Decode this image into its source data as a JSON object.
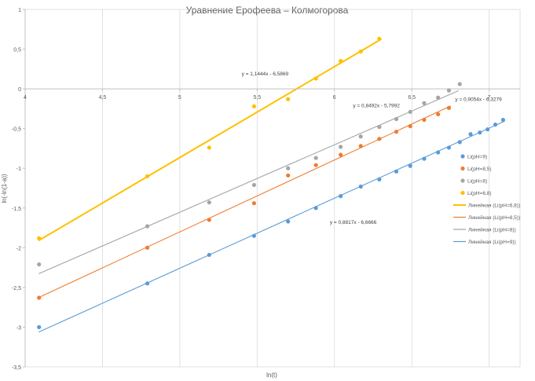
{
  "chart_data": {
    "type": "scatter",
    "title": "Уравнение Ерофеева – Колмогорова",
    "xlabel": "ln(t)",
    "ylabel": "ln(-ln(1-a))",
    "xlim": [
      4,
      7.2
    ],
    "ylim": [
      -3.5,
      1
    ],
    "x_ticks": [
      4,
      4.5,
      5,
      5.5,
      6,
      6.5,
      7
    ],
    "x_tick_labels": [
      "4",
      "4,5",
      "5",
      "5,5",
      "6",
      "6,5",
      "7"
    ],
    "y_ticks": [
      -3.5,
      -3,
      -2.5,
      -2,
      -1.5,
      -1,
      -0.5,
      0,
      0.5,
      1
    ],
    "y_tick_labels": [
      "-3,5",
      "-3",
      "-2,5",
      "-2",
      "-1,5",
      "-1",
      "-0,5",
      "0",
      "0,5",
      "1"
    ],
    "x_axis_crosses_at_y": 0,
    "grid": "vertical",
    "legend_position": "right",
    "series": [
      {
        "name": "Li(pH=9)",
        "color": "#5b9bd5",
        "points": [
          [
            4.09,
            -3.0
          ],
          [
            4.79,
            -2.45
          ],
          [
            5.19,
            -2.09
          ],
          [
            5.48,
            -1.85
          ],
          [
            5.7,
            -1.67
          ],
          [
            5.88,
            -1.5
          ],
          [
            6.04,
            -1.35
          ],
          [
            6.17,
            -1.23
          ],
          [
            6.29,
            -1.14
          ],
          [
            6.4,
            -1.04
          ],
          [
            6.49,
            -0.97
          ],
          [
            6.58,
            -0.88
          ],
          [
            6.67,
            -0.8
          ],
          [
            6.74,
            -0.74
          ],
          [
            6.81,
            -0.67
          ],
          [
            6.88,
            -0.57
          ],
          [
            6.94,
            -0.55
          ],
          [
            6.99,
            -0.51
          ],
          [
            7.04,
            -0.45
          ],
          [
            7.09,
            -0.39
          ]
        ]
      },
      {
        "name": "Li(pH=8,5)",
        "color": "#ed7d31",
        "points": [
          [
            4.09,
            -2.63
          ],
          [
            4.79,
            -2.0
          ],
          [
            5.19,
            -1.65
          ],
          [
            5.48,
            -1.44
          ],
          [
            5.7,
            -1.09
          ],
          [
            5.88,
            -0.96
          ],
          [
            6.04,
            -0.83
          ],
          [
            6.17,
            -0.72
          ],
          [
            6.29,
            -0.63
          ],
          [
            6.4,
            -0.54
          ],
          [
            6.49,
            -0.47
          ],
          [
            6.58,
            -0.39
          ],
          [
            6.67,
            -0.32
          ],
          [
            6.74,
            -0.24
          ]
        ]
      },
      {
        "name": "Li(pH=8)",
        "color": "#a5a5a5",
        "points": [
          [
            4.09,
            -2.21
          ],
          [
            4.79,
            -1.73
          ],
          [
            5.19,
            -1.43
          ],
          [
            5.48,
            -1.21
          ],
          [
            5.7,
            -1.0
          ],
          [
            5.88,
            -0.87
          ],
          [
            6.04,
            -0.73
          ],
          [
            6.17,
            -0.6
          ],
          [
            6.29,
            -0.48
          ],
          [
            6.4,
            -0.38
          ],
          [
            6.49,
            -0.29
          ],
          [
            6.58,
            -0.18
          ],
          [
            6.67,
            -0.11
          ],
          [
            6.74,
            -0.02
          ],
          [
            6.81,
            0.06
          ]
        ]
      },
      {
        "name": "Li(pH=6,8)",
        "color": "#ffc000",
        "points": [
          [
            4.09,
            -1.88
          ],
          [
            4.79,
            -1.1
          ],
          [
            5.19,
            -0.74
          ],
          [
            5.48,
            -0.22
          ],
          [
            5.7,
            -0.13
          ],
          [
            5.88,
            0.13
          ],
          [
            6.04,
            0.35
          ],
          [
            6.17,
            0.47
          ],
          [
            6.29,
            0.63
          ]
        ]
      }
    ],
    "trendlines": [
      {
        "name": "Линейная (Li(pH=6,8))",
        "color": "#ffc000",
        "slope": 1.1444,
        "intercept": -6.5869,
        "x_range": [
          4.09,
          6.3
        ],
        "equation": "y = 1,1444x - 6,5869"
      },
      {
        "name": "Линейная (Li(pH=8,5))",
        "color": "#ed7d31",
        "slope": 0.9054,
        "intercept": -6.3279,
        "x_range": [
          4.09,
          6.75
        ],
        "equation": "y = 0,9054x - 6,3279"
      },
      {
        "name": "Линейная (Li(pH=8))",
        "color": "#a5a5a5",
        "slope": 0.8492,
        "intercept": -5.7992,
        "x_range": [
          4.09,
          6.8
        ],
        "equation": "y = 0,8492x - 5,7992"
      },
      {
        "name": "Линейная (Li(pH=9))",
        "color": "#5b9bd5",
        "slope": 0.8817,
        "intercept": -6.6666,
        "x_range": [
          4.09,
          7.1
        ],
        "equation": "y = 0,8817x - 6,6666"
      }
    ],
    "equation_anchors": [
      {
        "equation_index": 0,
        "x": 5.4,
        "y": 0.17
      },
      {
        "equation_index": 2,
        "x": 6.12,
        "y": -0.23
      },
      {
        "equation_index": 1,
        "x": 6.78,
        "y": -0.15
      },
      {
        "equation_index": 3,
        "x": 5.97,
        "y": -1.7
      }
    ]
  }
}
